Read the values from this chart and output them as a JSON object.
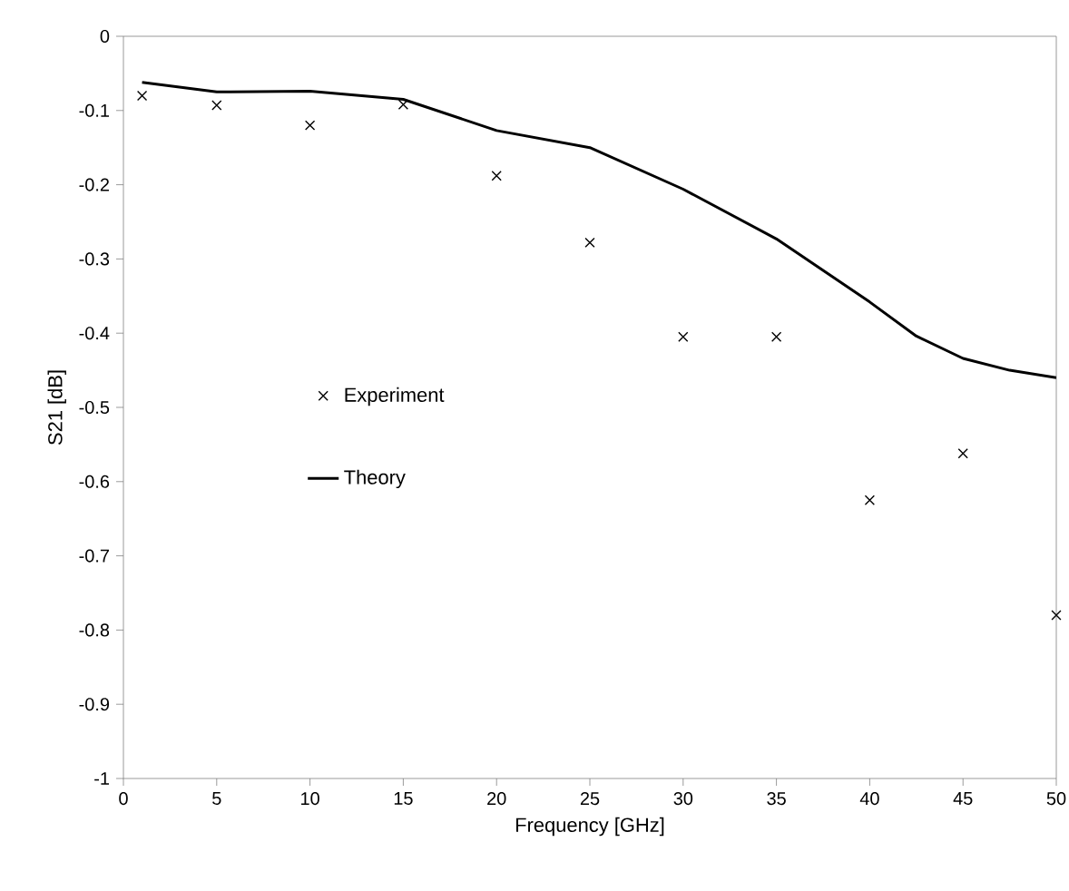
{
  "chart_data": {
    "type": "scatter",
    "xlabel": "Frequency [GHz]",
    "ylabel": "S21 [dB]",
    "xlim": [
      0,
      50
    ],
    "ylim": [
      -1,
      0
    ],
    "xticks": [
      0,
      5,
      10,
      15,
      20,
      25,
      30,
      35,
      40,
      45,
      50
    ],
    "yticks": [
      -1,
      -0.9,
      -0.8,
      -0.7,
      -0.6,
      -0.5,
      -0.4,
      -0.3,
      -0.2,
      -0.1,
      0
    ],
    "grid": false,
    "legend": "left",
    "series": [
      {
        "name": "Experiment",
        "marker": "cross",
        "color": "#000000",
        "x": [
          1,
          5,
          10,
          15,
          20,
          25,
          30,
          35,
          40,
          45,
          50
        ],
        "values": [
          -0.08,
          -0.093,
          -0.12,
          -0.092,
          -0.188,
          -0.278,
          -0.405,
          -0.405,
          -0.625,
          -0.562,
          -0.78
        ]
      },
      {
        "name": "Theory",
        "type": "line",
        "marker": "none",
        "line_style": "solid",
        "color": "#000000",
        "x": [
          1,
          5,
          10,
          15,
          20,
          25,
          30,
          35,
          40,
          42.5,
          45,
          47.5,
          50
        ],
        "values": [
          -0.062,
          -0.075,
          -0.074,
          -0.085,
          -0.127,
          -0.15,
          -0.206,
          -0.273,
          -0.358,
          -0.404,
          -0.434,
          -0.45,
          -0.46
        ]
      }
    ]
  }
}
